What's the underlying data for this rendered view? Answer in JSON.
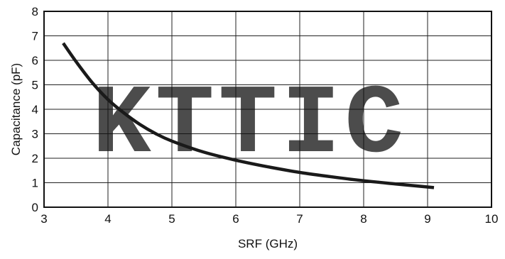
{
  "chart_data": {
    "type": "line",
    "title": "",
    "xlabel": "SRF (GHz)",
    "ylabel": "Capacitance (pF)",
    "xlim": [
      3,
      10
    ],
    "ylim": [
      0,
      8
    ],
    "x_ticks": [
      3,
      4,
      5,
      6,
      7,
      8,
      9,
      10
    ],
    "y_ticks": [
      0,
      1,
      2,
      3,
      4,
      5,
      6,
      7,
      8
    ],
    "grid": true,
    "legend": "none",
    "series": [
      {
        "color": "#1a1a1a",
        "x": [
          3.3,
          3.5,
          3.75,
          4.0,
          4.25,
          4.5,
          4.75,
          5.0,
          5.5,
          6.0,
          6.5,
          7.0,
          7.5,
          8.0,
          8.5,
          9.1
        ],
        "y": [
          6.7,
          5.95,
          5.1,
          4.4,
          3.85,
          3.38,
          3.0,
          2.7,
          2.25,
          1.92,
          1.65,
          1.42,
          1.24,
          1.08,
          0.95,
          0.8
        ]
      }
    ]
  },
  "watermark": {
    "text": "KTTIC",
    "color": "#f08a80"
  }
}
